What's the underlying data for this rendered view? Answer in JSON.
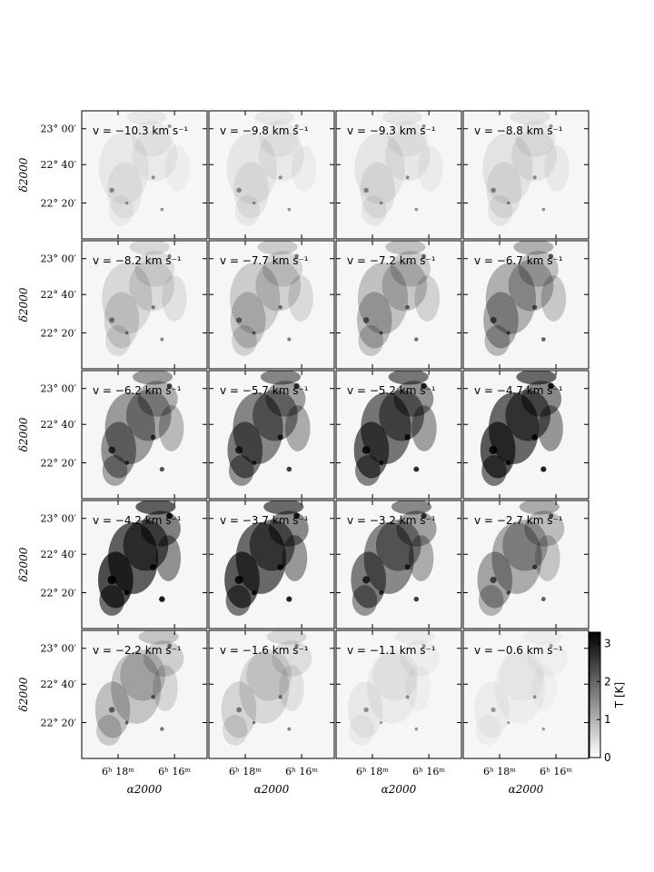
{
  "chart_data": {
    "type": "heatmap",
    "title": "",
    "layout": {
      "rows": 5,
      "cols": 4
    },
    "panels": [
      {
        "label": "v = −10.3 km s⁻¹",
        "velocity": -10.3,
        "intensity": 0.08
      },
      {
        "label": "v = −9.8 km s⁻¹",
        "velocity": -9.8,
        "intensity": 0.09
      },
      {
        "label": "v = −9.3 km s⁻¹",
        "velocity": -9.3,
        "intensity": 0.1
      },
      {
        "label": "v = −8.8 km s⁻¹",
        "velocity": -8.8,
        "intensity": 0.11
      },
      {
        "label": "v = −8.2 km s⁻¹",
        "velocity": -8.2,
        "intensity": 0.18
      },
      {
        "label": "v = −7.7 km s⁻¹",
        "velocity": -7.7,
        "intensity": 0.25
      },
      {
        "label": "v = −7.2 km s⁻¹",
        "velocity": -7.2,
        "intensity": 0.32
      },
      {
        "label": "v = −6.7 km s⁻¹",
        "velocity": -6.7,
        "intensity": 0.42
      },
      {
        "label": "v = −6.2 km s⁻¹",
        "velocity": -6.2,
        "intensity": 0.55
      },
      {
        "label": "v = −5.7 km s⁻¹",
        "velocity": -5.7,
        "intensity": 0.68
      },
      {
        "label": "v = −5.2 km s⁻¹",
        "velocity": -5.2,
        "intensity": 0.78
      },
      {
        "label": "v = −4.7 km s⁻¹",
        "velocity": -4.7,
        "intensity": 0.86
      },
      {
        "label": "v = −4.2 km s⁻¹",
        "velocity": -4.2,
        "intensity": 0.92
      },
      {
        "label": "v = −3.7 km s⁻¹",
        "velocity": -3.7,
        "intensity": 0.85
      },
      {
        "label": "v = −3.2 km s⁻¹",
        "velocity": -3.2,
        "intensity": 0.66
      },
      {
        "label": "v = −2.7 km s⁻¹",
        "velocity": -2.7,
        "intensity": 0.45
      },
      {
        "label": "v = −2.2 km s⁻¹",
        "velocity": -2.2,
        "intensity": 0.3
      },
      {
        "label": "v = −1.6 km s⁻¹",
        "velocity": -1.6,
        "intensity": 0.18
      },
      {
        "label": "v = −1.1 km s⁻¹",
        "velocity": -1.1,
        "intensity": 0.07
      },
      {
        "label": "v = −0.6 km s⁻¹",
        "velocity": -0.6,
        "intensity": 0.05
      }
    ],
    "y_ticks": [
      "23° 00′",
      "22° 40′",
      "22° 20′"
    ],
    "x_ticks": [
      "6ʰ 18ᵐ",
      "6ʰ 16ᵐ"
    ],
    "ylabel": "δ2000",
    "xlabel": "α2000",
    "colorbar": {
      "label": "T [K]",
      "ticks": [
        "0",
        "1",
        "2",
        "3"
      ],
      "range": [
        0,
        3.3
      ],
      "cmap": "gray_r"
    }
  },
  "colors": {
    "ink": "#000000",
    "background": "#ffffff"
  }
}
